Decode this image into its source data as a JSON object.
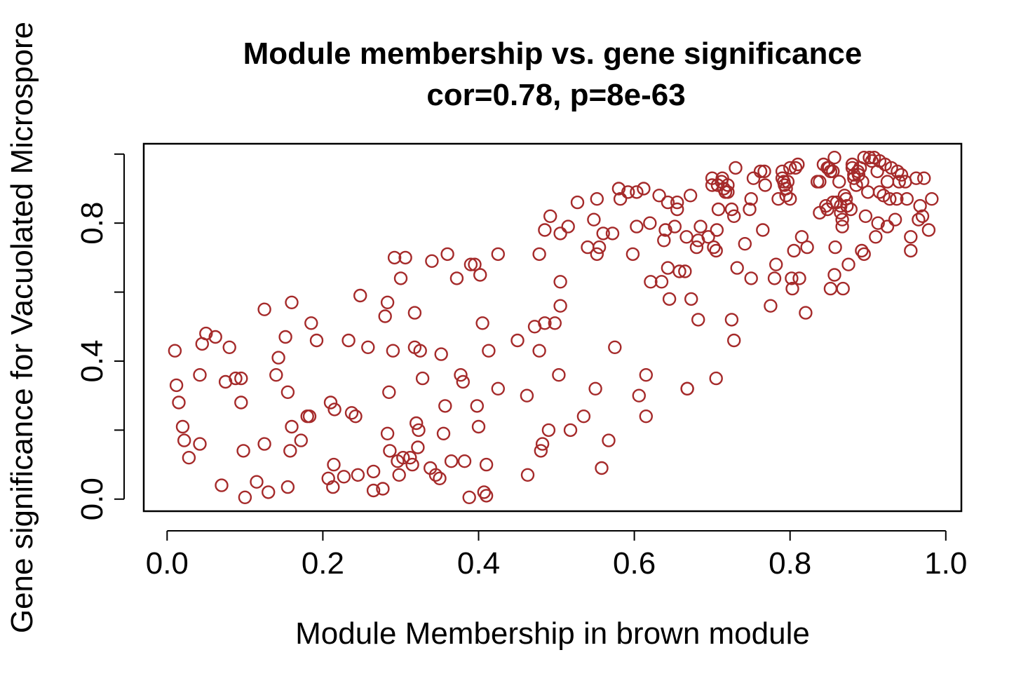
{
  "chart_data": {
    "type": "scatter",
    "title": "Module membership vs. gene significance",
    "subtitle": "cor=0.78, p=8e-63",
    "xlabel": "Module Membership in brown module",
    "ylabel": "Gene significance for Vacuolated Microspore",
    "xlim": [
      -0.03,
      1.02
    ],
    "ylim": [
      -0.035,
      1.03
    ],
    "xticks": [
      0.0,
      0.2,
      0.4,
      0.6,
      0.8,
      1.0
    ],
    "xtick_labels": [
      "0.0",
      "0.2",
      "0.4",
      "0.6",
      "0.8",
      "1.0"
    ],
    "yticks": [
      0.0,
      0.2,
      0.4,
      0.6,
      0.8,
      1.0
    ],
    "ytick_labels": [
      "0.0",
      "0.4",
      "0.8"
    ],
    "ytick_labeled": [
      0.0,
      0.4,
      0.8
    ],
    "grid": false,
    "legend": "none",
    "marker": "open-circle",
    "point_color": "#A52A2A",
    "points": [
      [
        0.01,
        0.43
      ],
      [
        0.012,
        0.33
      ],
      [
        0.015,
        0.28
      ],
      [
        0.02,
        0.21
      ],
      [
        0.022,
        0.17
      ],
      [
        0.028,
        0.12
      ],
      [
        0.042,
        0.36
      ],
      [
        0.042,
        0.16
      ],
      [
        0.045,
        0.45
      ],
      [
        0.05,
        0.48
      ],
      [
        0.062,
        0.47
      ],
      [
        0.07,
        0.04
      ],
      [
        0.075,
        0.34
      ],
      [
        0.08,
        0.44
      ],
      [
        0.088,
        0.35
      ],
      [
        0.095,
        0.35
      ],
      [
        0.095,
        0.28
      ],
      [
        0.098,
        0.14
      ],
      [
        0.1,
        0.005
      ],
      [
        0.115,
        0.05
      ],
      [
        0.125,
        0.55
      ],
      [
        0.125,
        0.16
      ],
      [
        0.13,
        0.02
      ],
      [
        0.14,
        0.36
      ],
      [
        0.143,
        0.41
      ],
      [
        0.152,
        0.47
      ],
      [
        0.155,
        0.31
      ],
      [
        0.155,
        0.035
      ],
      [
        0.158,
        0.14
      ],
      [
        0.16,
        0.21
      ],
      [
        0.16,
        0.57
      ],
      [
        0.172,
        0.17
      ],
      [
        0.18,
        0.24
      ],
      [
        0.183,
        0.24
      ],
      [
        0.185,
        0.51
      ],
      [
        0.192,
        0.46
      ],
      [
        0.207,
        0.06
      ],
      [
        0.21,
        0.28
      ],
      [
        0.213,
        0.035
      ],
      [
        0.214,
        0.1
      ],
      [
        0.215,
        0.26
      ],
      [
        0.227,
        0.065
      ],
      [
        0.233,
        0.46
      ],
      [
        0.237,
        0.25
      ],
      [
        0.242,
        0.24
      ],
      [
        0.245,
        0.07
      ],
      [
        0.248,
        0.59
      ],
      [
        0.258,
        0.44
      ],
      [
        0.265,
        0.08
      ],
      [
        0.265,
        0.025
      ],
      [
        0.277,
        0.03
      ],
      [
        0.28,
        0.53
      ],
      [
        0.283,
        0.57
      ],
      [
        0.283,
        0.19
      ],
      [
        0.285,
        0.31
      ],
      [
        0.286,
        0.14
      ],
      [
        0.29,
        0.43
      ],
      [
        0.292,
        0.7
      ],
      [
        0.296,
        0.11
      ],
      [
        0.298,
        0.07
      ],
      [
        0.3,
        0.64
      ],
      [
        0.303,
        0.12
      ],
      [
        0.306,
        0.7
      ],
      [
        0.312,
        0.12
      ],
      [
        0.315,
        0.1
      ],
      [
        0.318,
        0.54
      ],
      [
        0.318,
        0.44
      ],
      [
        0.32,
        0.22
      ],
      [
        0.322,
        0.15
      ],
      [
        0.323,
        0.2
      ],
      [
        0.325,
        0.43
      ],
      [
        0.328,
        0.35
      ],
      [
        0.338,
        0.09
      ],
      [
        0.34,
        0.69
      ],
      [
        0.345,
        0.07
      ],
      [
        0.35,
        0.06
      ],
      [
        0.352,
        0.42
      ],
      [
        0.355,
        0.19
      ],
      [
        0.357,
        0.27
      ],
      [
        0.36,
        0.71
      ],
      [
        0.365,
        0.11
      ],
      [
        0.372,
        0.64
      ],
      [
        0.377,
        0.36
      ],
      [
        0.38,
        0.34
      ],
      [
        0.382,
        0.11
      ],
      [
        0.388,
        0.005
      ],
      [
        0.39,
        0.68
      ],
      [
        0.395,
        0.68
      ],
      [
        0.398,
        0.27
      ],
      [
        0.4,
        0.21
      ],
      [
        0.402,
        0.65
      ],
      [
        0.405,
        0.51
      ],
      [
        0.407,
        0.02
      ],
      [
        0.41,
        0.01
      ],
      [
        0.41,
        0.1
      ],
      [
        0.413,
        0.43
      ],
      [
        0.425,
        0.71
      ],
      [
        0.425,
        0.32
      ],
      [
        0.45,
        0.46
      ],
      [
        0.462,
        0.3
      ],
      [
        0.463,
        0.07
      ],
      [
        0.472,
        0.5
      ],
      [
        0.478,
        0.71
      ],
      [
        0.478,
        0.43
      ],
      [
        0.48,
        0.14
      ],
      [
        0.482,
        0.16
      ],
      [
        0.485,
        0.51
      ],
      [
        0.485,
        0.78
      ],
      [
        0.49,
        0.2
      ],
      [
        0.492,
        0.82
      ],
      [
        0.498,
        0.51
      ],
      [
        0.503,
        0.36
      ],
      [
        0.505,
        0.77
      ],
      [
        0.505,
        0.63
      ],
      [
        0.505,
        0.56
      ],
      [
        0.515,
        0.79
      ],
      [
        0.518,
        0.2
      ],
      [
        0.527,
        0.86
      ],
      [
        0.535,
        0.24
      ],
      [
        0.54,
        0.73
      ],
      [
        0.548,
        0.81
      ],
      [
        0.55,
        0.32
      ],
      [
        0.552,
        0.71
      ],
      [
        0.552,
        0.87
      ],
      [
        0.555,
        0.73
      ],
      [
        0.558,
        0.09
      ],
      [
        0.56,
        0.77
      ],
      [
        0.567,
        0.17
      ],
      [
        0.572,
        0.77
      ],
      [
        0.575,
        0.44
      ],
      [
        0.58,
        0.9
      ],
      [
        0.582,
        0.87
      ],
      [
        0.592,
        0.89
      ],
      [
        0.598,
        0.71
      ],
      [
        0.603,
        0.79
      ],
      [
        0.603,
        0.89
      ],
      [
        0.606,
        0.3
      ],
      [
        0.612,
        0.9
      ],
      [
        0.615,
        0.36
      ],
      [
        0.615,
        0.24
      ],
      [
        0.62,
        0.8
      ],
      [
        0.621,
        0.63
      ],
      [
        0.632,
        0.88
      ],
      [
        0.635,
        0.63
      ],
      [
        0.638,
        0.75
      ],
      [
        0.64,
        0.78
      ],
      [
        0.643,
        0.86
      ],
      [
        0.643,
        0.67
      ],
      [
        0.645,
        0.58
      ],
      [
        0.652,
        0.79
      ],
      [
        0.655,
        0.84
      ],
      [
        0.655,
        0.86
      ],
      [
        0.658,
        0.66
      ],
      [
        0.665,
        0.66
      ],
      [
        0.667,
        0.76
      ],
      [
        0.668,
        0.32
      ],
      [
        0.668,
        0.32
      ],
      [
        0.672,
        0.88
      ],
      [
        0.673,
        0.58
      ],
      [
        0.68,
        0.73
      ],
      [
        0.682,
        0.52
      ],
      [
        0.682,
        0.75
      ],
      [
        0.685,
        0.79
      ],
      [
        0.695,
        0.76
      ],
      [
        0.7,
        0.93
      ],
      [
        0.7,
        0.91
      ],
      [
        0.702,
        0.73
      ],
      [
        0.705,
        0.72
      ],
      [
        0.705,
        0.35
      ],
      [
        0.706,
        0.78
      ],
      [
        0.707,
        0.91
      ],
      [
        0.708,
        0.84
      ],
      [
        0.712,
        0.92
      ],
      [
        0.713,
        0.93
      ],
      [
        0.715,
        0.9
      ],
      [
        0.717,
        0.89
      ],
      [
        0.72,
        0.89
      ],
      [
        0.72,
        0.91
      ],
      [
        0.725,
        0.52
      ],
      [
        0.725,
        0.84
      ],
      [
        0.728,
        0.46
      ],
      [
        0.728,
        0.82
      ],
      [
        0.73,
        0.96
      ],
      [
        0.732,
        0.67
      ],
      [
        0.742,
        0.74
      ],
      [
        0.748,
        0.84
      ],
      [
        0.75,
        0.87
      ],
      [
        0.75,
        0.64
      ],
      [
        0.753,
        0.93
      ],
      [
        0.762,
        0.95
      ],
      [
        0.765,
        0.78
      ],
      [
        0.767,
        0.95
      ],
      [
        0.768,
        0.91
      ],
      [
        0.775,
        0.56
      ],
      [
        0.78,
        0.64
      ],
      [
        0.782,
        0.68
      ],
      [
        0.785,
        0.87
      ],
      [
        0.79,
        0.93
      ],
      [
        0.79,
        0.95
      ],
      [
        0.792,
        0.92
      ],
      [
        0.793,
        0.91
      ],
      [
        0.795,
        0.9
      ],
      [
        0.795,
        0.88
      ],
      [
        0.797,
        0.92
      ],
      [
        0.8,
        0.96
      ],
      [
        0.8,
        0.87
      ],
      [
        0.802,
        0.64
      ],
      [
        0.803,
        0.61
      ],
      [
        0.805,
        0.72
      ],
      [
        0.807,
        0.96
      ],
      [
        0.81,
        0.97
      ],
      [
        0.812,
        0.64
      ],
      [
        0.815,
        0.76
      ],
      [
        0.82,
        0.54
      ],
      [
        0.822,
        0.73
      ],
      [
        0.835,
        0.92
      ],
      [
        0.838,
        0.83
      ],
      [
        0.838,
        0.92
      ],
      [
        0.843,
        0.97
      ],
      [
        0.846,
        0.85
      ],
      [
        0.848,
        0.84
      ],
      [
        0.848,
        0.96
      ],
      [
        0.85,
        0.96
      ],
      [
        0.852,
        0.61
      ],
      [
        0.852,
        0.95
      ],
      [
        0.855,
        0.86
      ],
      [
        0.855,
        0.95
      ],
      [
        0.857,
        0.65
      ],
      [
        0.857,
        0.99
      ],
      [
        0.858,
        0.73
      ],
      [
        0.86,
        0.86
      ],
      [
        0.863,
        0.92
      ],
      [
        0.865,
        0.83
      ],
      [
        0.865,
        0.85
      ],
      [
        0.867,
        0.79
      ],
      [
        0.867,
        0.81
      ],
      [
        0.868,
        0.61
      ],
      [
        0.87,
        0.88
      ],
      [
        0.872,
        0.87
      ],
      [
        0.873,
        0.85
      ],
      [
        0.875,
        0.68
      ],
      [
        0.878,
        0.84
      ],
      [
        0.88,
        0.97
      ],
      [
        0.88,
        0.96
      ],
      [
        0.882,
        0.94
      ],
      [
        0.882,
        0.93
      ],
      [
        0.885,
        0.91
      ],
      [
        0.887,
        0.95
      ],
      [
        0.888,
        0.94
      ],
      [
        0.89,
        0.96
      ],
      [
        0.892,
        0.72
      ],
      [
        0.893,
        0.92
      ],
      [
        0.895,
        0.71
      ],
      [
        0.895,
        0.99
      ],
      [
        0.897,
        0.82
      ],
      [
        0.9,
        0.89
      ],
      [
        0.902,
        0.99
      ],
      [
        0.905,
        0.98
      ],
      [
        0.908,
        0.99
      ],
      [
        0.91,
        0.76
      ],
      [
        0.912,
        0.95
      ],
      [
        0.913,
        0.8
      ],
      [
        0.915,
        0.89
      ],
      [
        0.915,
        0.98
      ],
      [
        0.92,
        0.88
      ],
      [
        0.922,
        0.97
      ],
      [
        0.925,
        0.79
      ],
      [
        0.925,
        0.92
      ],
      [
        0.928,
        0.87
      ],
      [
        0.93,
        0.96
      ],
      [
        0.935,
        0.81
      ],
      [
        0.937,
        0.87
      ],
      [
        0.938,
        0.95
      ],
      [
        0.94,
        0.92
      ],
      [
        0.943,
        0.94
      ],
      [
        0.948,
        0.92
      ],
      [
        0.95,
        0.87
      ],
      [
        0.955,
        0.72
      ],
      [
        0.955,
        0.76
      ],
      [
        0.962,
        0.93
      ],
      [
        0.965,
        0.81
      ],
      [
        0.967,
        0.85
      ],
      [
        0.97,
        0.82
      ],
      [
        0.972,
        0.93
      ],
      [
        0.978,
        0.78
      ],
      [
        0.982,
        0.87
      ]
    ]
  }
}
